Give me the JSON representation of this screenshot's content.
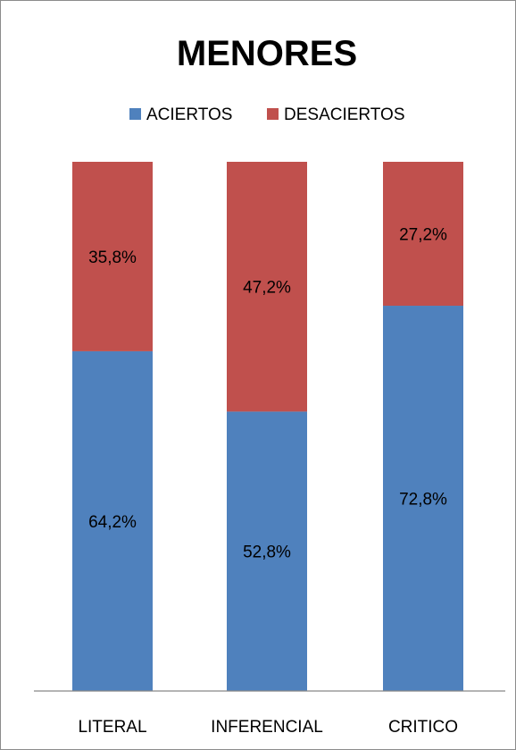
{
  "chart_data": {
    "type": "bar",
    "stacked": true,
    "title": "MENORES",
    "categories": [
      "LITERAL",
      "INFERENCIAL",
      "CRITICO"
    ],
    "series": [
      {
        "name": "ACIERTOS",
        "color": "#4F81BD",
        "values": [
          64.2,
          52.8,
          72.8
        ],
        "labels": [
          "64,2%",
          "52,8%",
          "72,8%"
        ]
      },
      {
        "name": "DESACIERTOS",
        "color": "#C0504D",
        "values": [
          35.8,
          47.2,
          27.2
        ],
        "labels": [
          "35,8%",
          "47,2%",
          "27,2%"
        ]
      }
    ],
    "ylim": [
      0,
      100
    ],
    "legend_position": "top",
    "grid": false
  }
}
